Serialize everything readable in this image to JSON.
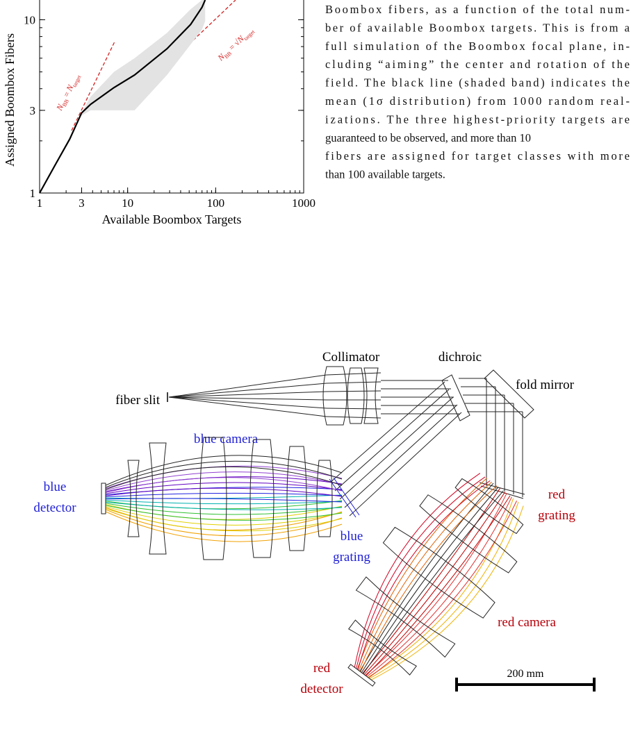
{
  "chart_data": {
    "type": "line",
    "xlabel": "Available Boombox Targets",
    "ylabel": "Assigned Boombox Fibers",
    "x": [
      1,
      1.5,
      2.2,
      3,
      3.8,
      7,
      12,
      28,
      52,
      70,
      76
    ],
    "values": [
      1,
      1.45,
      2.05,
      2.9,
      3.25,
      4.06,
      4.8,
      6.8,
      9.4,
      11.8,
      13
    ],
    "band_lower": [
      null,
      null,
      null,
      2.8,
      3.0,
      3.0,
      3.0,
      4.8,
      7.2,
      8.8,
      9.8
    ],
    "band_upper": [
      null,
      null,
      null,
      2.9,
      3.6,
      5.0,
      6.0,
      8.4,
      11.5,
      13,
      13
    ],
    "color": "#000000",
    "band_color": "#e3e3e3",
    "log_x": true,
    "log_y": true,
    "xlim": [
      1,
      1000
    ],
    "ylim": [
      1,
      13
    ],
    "xticks": [
      1,
      3,
      10,
      100,
      1000
    ],
    "yticks": [
      1,
      3,
      10
    ],
    "line_label_1": [
      "N",
      "BB",
      " = ",
      "N",
      "target"
    ],
    "line_label_2": [
      "N",
      "BB",
      " = √",
      "N",
      "target"
    ]
  },
  "caption": {
    "lines": [
      "Boombox fibers, as a function of the total num-",
      "ber of available Boombox targets. This is from a",
      "full simulation of the Boombox focal plane, in-",
      "cluding “aiming” the center and rotation of the",
      "field. The black line (shaded band) indicates the",
      "mean (1σ distribution) from 1000 random real-",
      "izations. The three highest-priority targets are",
      "guaranteed to be observed, and more than 10",
      "fibers are assigned for target classes with more",
      "than 100 available targets."
    ]
  },
  "diagram": {
    "collimator": "Collimator",
    "dichroic": "dichroic",
    "fold_mirror": "fold mirror",
    "fiber_slit": "fiber slit",
    "blue_camera": "blue camera",
    "blue_detector": [
      "blue",
      "detector"
    ],
    "blue_grating": [
      "blue",
      "grating"
    ],
    "red_grating": [
      "red",
      "grating"
    ],
    "red_camera": "red camera",
    "red_detector": [
      "red",
      "detector"
    ],
    "scale_bar": "200 mm"
  }
}
